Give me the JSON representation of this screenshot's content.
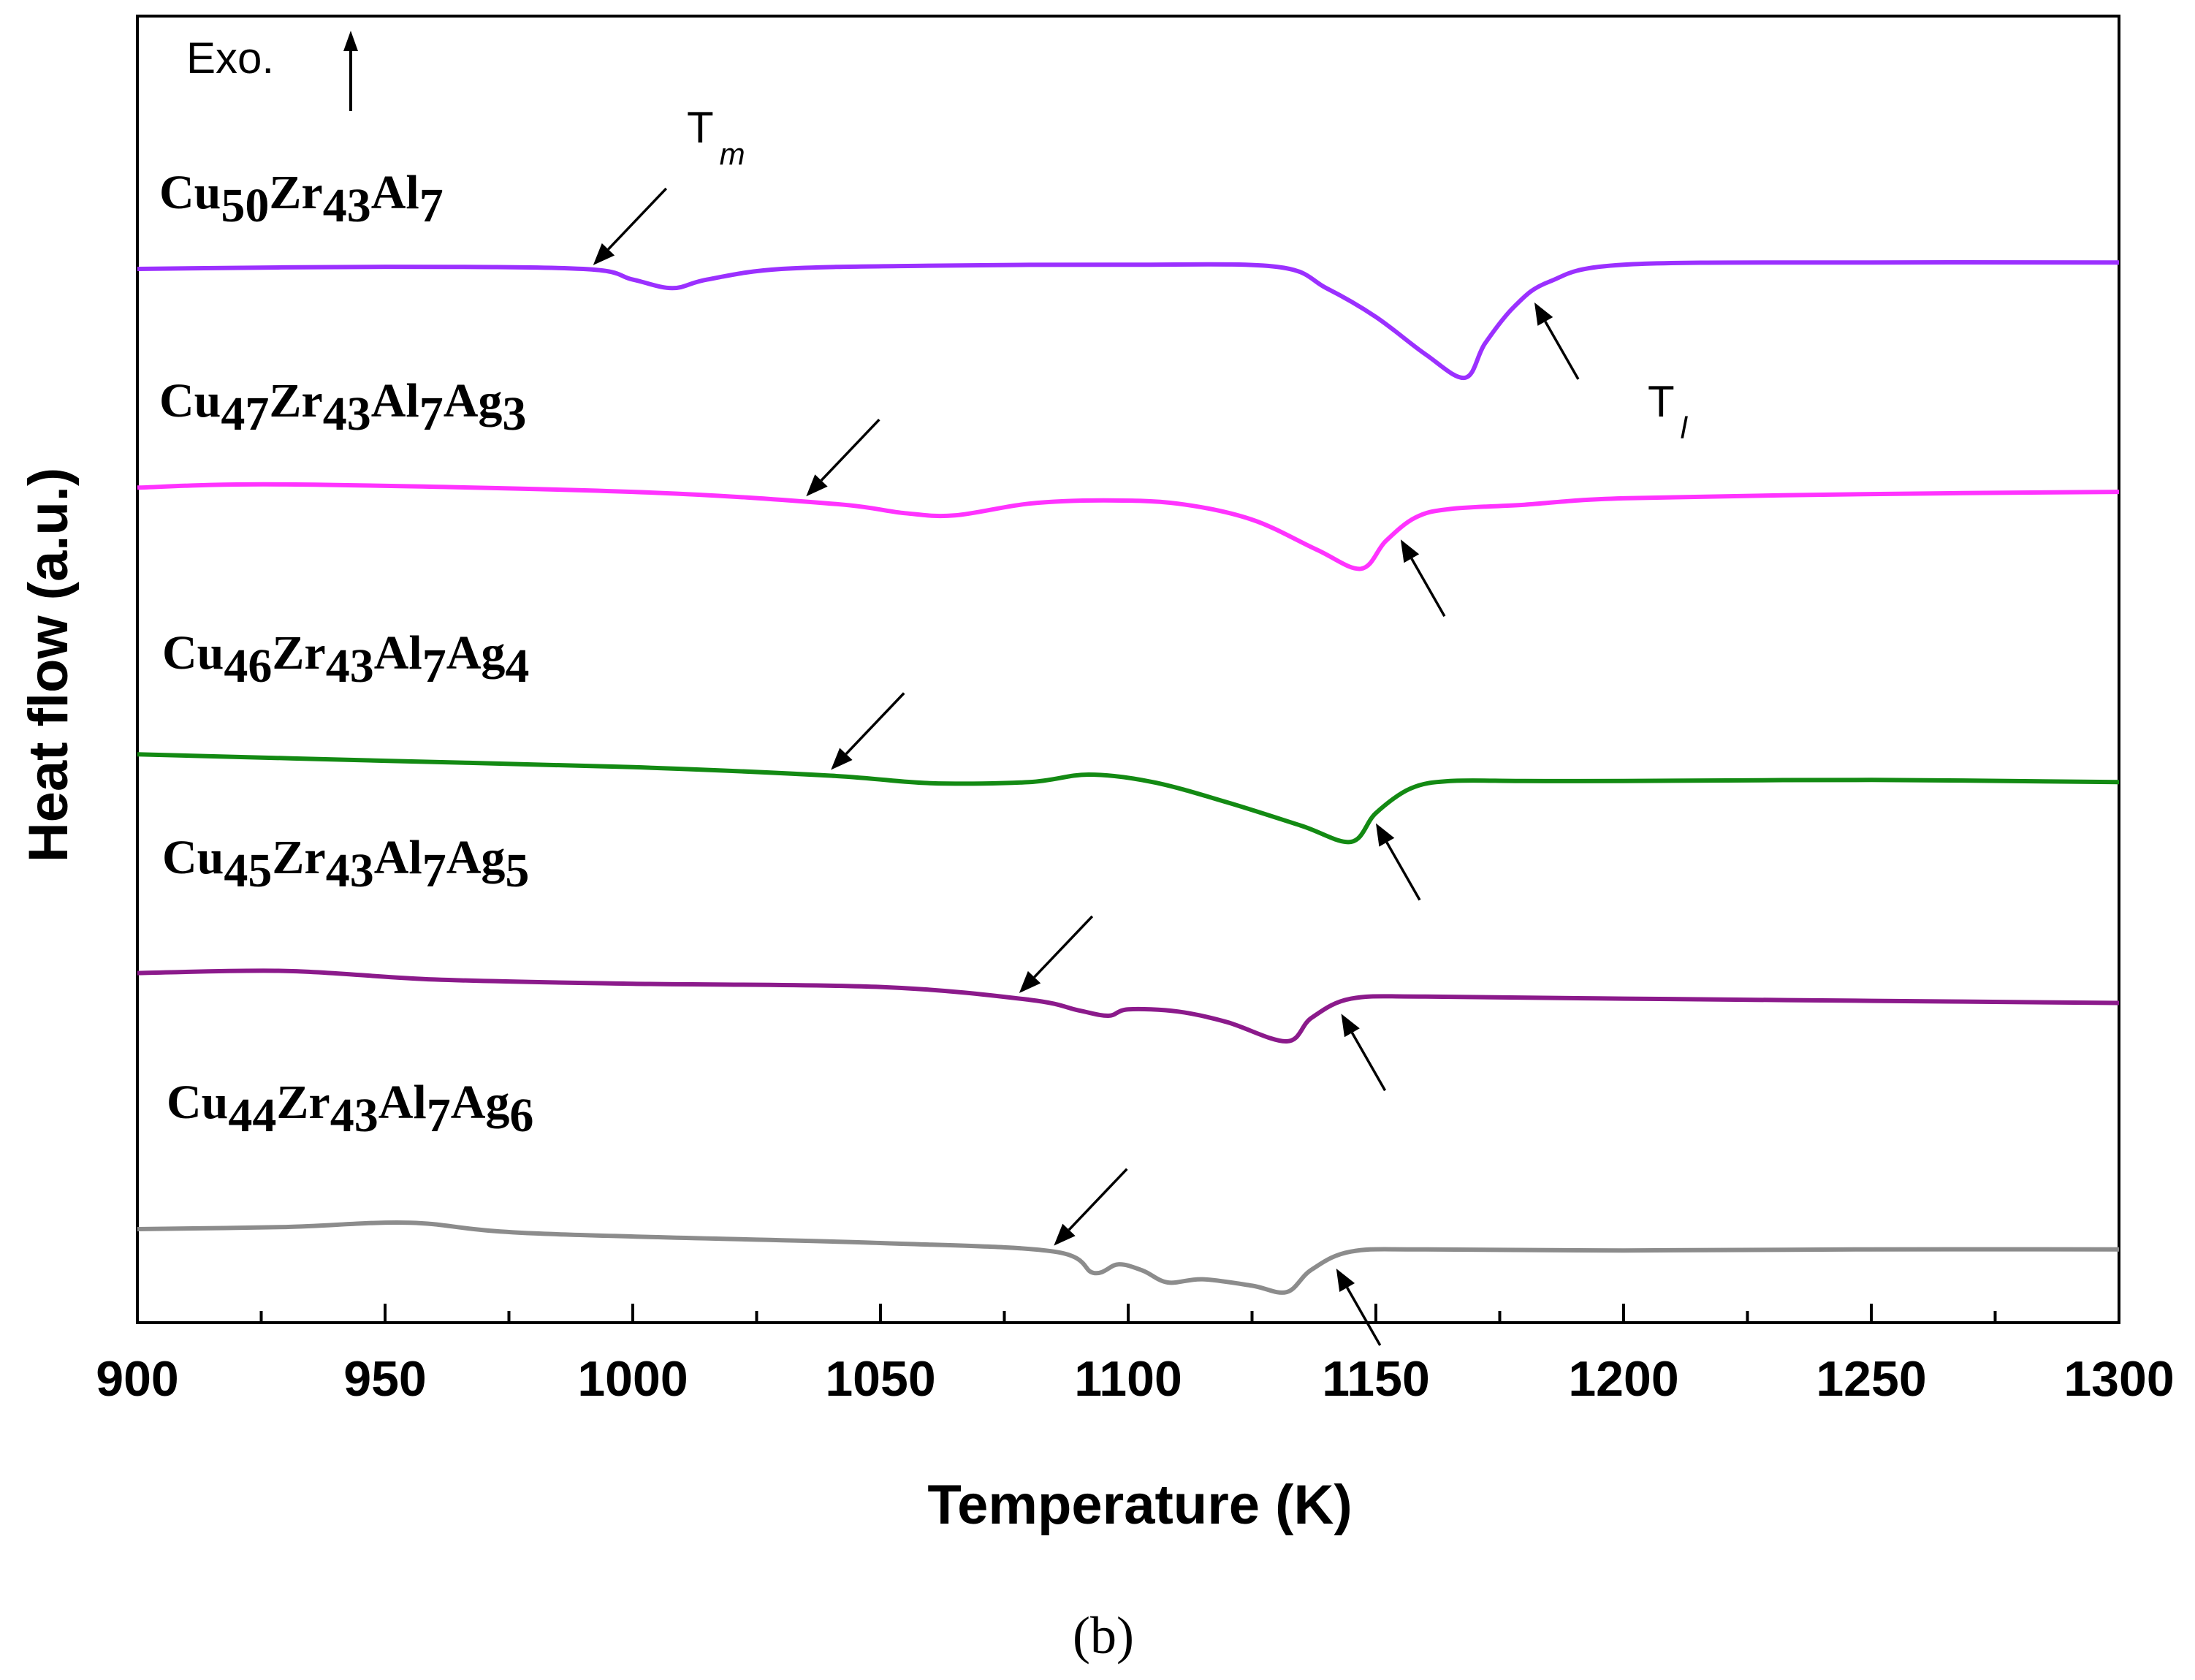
{
  "chart_data": {
    "type": "line",
    "title": "",
    "xlabel": "Temperature (K)",
    "ylabel": "Heat flow (a.u.)",
    "xlim": [
      900,
      1300
    ],
    "xticks": [
      "900",
      "950",
      "1000",
      "1050",
      "1100",
      "1150",
      "1200",
      "1250",
      "1300"
    ],
    "grid": false,
    "panel_label": "(b)",
    "exo_label": "Exo.",
    "tm_label": "T",
    "tm_sub": "m",
    "tl_label": "T",
    "tl_sub": "l",
    "series": [
      {
        "name": "Cu50Zr43Al7",
        "label_parts": [
          [
            "Cu",
            false
          ],
          [
            "50",
            true
          ],
          [
            "Zr",
            false
          ],
          [
            "43",
            true
          ],
          [
            "Al",
            false
          ],
          [
            "7",
            true
          ]
        ],
        "color": "#9B30FF",
        "offset": 0,
        "tm": 992,
        "tl": 1182,
        "x": [
          900,
          950,
          990,
          1000,
          1008,
          1015,
          1030,
          1060,
          1100,
          1130,
          1140,
          1150,
          1160,
          1168,
          1172,
          1178,
          1185,
          1200,
          1250,
          1300
        ],
        "y": [
          0,
          0.2,
          0,
          -1,
          -1.8,
          -1,
          0,
          0.3,
          0.4,
          0.2,
          -1.8,
          -4.5,
          -8,
          -10.2,
          -7,
          -3.5,
          -1.2,
          0.4,
          0.6,
          0.6
        ]
      },
      {
        "name": "Cu47Zr43Al7Ag3",
        "label_parts": [
          [
            "Cu",
            false
          ],
          [
            "47",
            true
          ],
          [
            "Zr",
            false
          ],
          [
            "43",
            true
          ],
          [
            "Al",
            false
          ],
          [
            "7",
            true
          ],
          [
            "Ag",
            false
          ],
          [
            "3",
            true
          ]
        ],
        "color": "#FF33FF",
        "offset": -20.5,
        "tm": 1035,
        "tl": 1155,
        "x": [
          900,
          930,
          1000,
          1040,
          1055,
          1065,
          1080,
          1095,
          1110,
          1125,
          1138,
          1147,
          1152,
          1158,
          1165,
          1180,
          1200,
          1250,
          1300
        ],
        "y": [
          0,
          0.3,
          -0.4,
          -1.5,
          -2.4,
          -2.6,
          -1.5,
          -1.2,
          -1.5,
          -3,
          -5.8,
          -7.6,
          -5,
          -2.8,
          -2,
          -1.6,
          -1,
          -0.6,
          -0.4
        ]
      },
      {
        "name": "Cu46Zr43Al7Ag4",
        "label_parts": [
          [
            "Cu",
            false
          ],
          [
            "46",
            true
          ],
          [
            "Zr",
            false
          ],
          [
            "43",
            true
          ],
          [
            "Al",
            false
          ],
          [
            "7",
            true
          ],
          [
            "Ag",
            false
          ],
          [
            "4",
            true
          ]
        ],
        "color": "#138A13",
        "offset": -45.5,
        "tm": 1040,
        "tl": 1150,
        "x": [
          900,
          950,
          1000,
          1040,
          1060,
          1080,
          1092,
          1105,
          1120,
          1135,
          1145,
          1150,
          1157,
          1165,
          1180,
          1200,
          1250,
          1300
        ],
        "y": [
          0,
          -0.6,
          -1.2,
          -2,
          -2.7,
          -2.6,
          -1.9,
          -2.6,
          -4.5,
          -6.7,
          -8.2,
          -5.5,
          -3.2,
          -2.5,
          -2.5,
          -2.5,
          -2.4,
          -2.6
        ]
      },
      {
        "name": "Cu45Zr43Al7Ag5",
        "label_parts": [
          [
            "Cu",
            false
          ],
          [
            "45",
            true
          ],
          [
            "Zr",
            false
          ],
          [
            "43",
            true
          ],
          [
            "Al",
            false
          ],
          [
            "7",
            true
          ],
          [
            "Ag",
            false
          ],
          [
            "5",
            true
          ]
        ],
        "color": "#8B1A8B",
        "offset": -66,
        "tm": 1078,
        "tl": 1143,
        "x": [
          900,
          930,
          960,
          1000,
          1050,
          1080,
          1090,
          1096,
          1100,
          1110,
          1120,
          1132,
          1137,
          1145,
          1160,
          1200,
          1250,
          1300
        ],
        "y": [
          0,
          0.2,
          -0.6,
          -1,
          -1.3,
          -2.5,
          -3.5,
          -4,
          -3.4,
          -3.6,
          -4.6,
          -6.4,
          -4.2,
          -2.4,
          -2.2,
          -2.4,
          -2.6,
          -2.8
        ]
      },
      {
        "name": "Cu44Zr43Al7Ag6",
        "label_parts": [
          [
            "Cu",
            false
          ],
          [
            "44",
            true
          ],
          [
            "Zr",
            false
          ],
          [
            "43",
            true
          ],
          [
            "Al",
            false
          ],
          [
            "7",
            true
          ],
          [
            "Ag",
            false
          ],
          [
            "6",
            true
          ]
        ],
        "color": "#8C8C8C",
        "offset": -90,
        "tm": 1085,
        "tl": 1142,
        "x": [
          900,
          930,
          955,
          980,
          1050,
          1085,
          1093,
          1098,
          1103,
          1108,
          1115,
          1125,
          1132,
          1137,
          1145,
          1160,
          1200,
          1250,
          1300
        ],
        "y": [
          0,
          0.2,
          0.6,
          -0.4,
          -1.3,
          -2.1,
          -4.1,
          -3.3,
          -3.9,
          -5,
          -4.7,
          -5.3,
          -5.9,
          -3.8,
          -2.1,
          -1.9,
          -2,
          -1.9,
          -1.9
        ]
      }
    ]
  }
}
